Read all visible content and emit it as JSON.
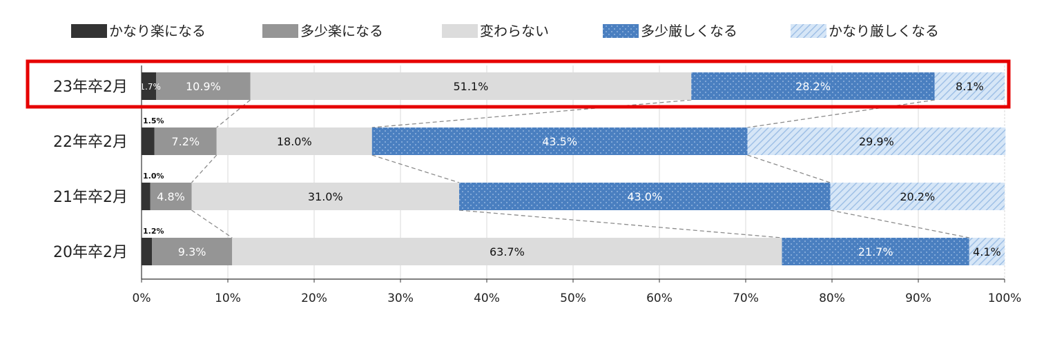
{
  "chart_data": {
    "type": "bar",
    "orientation": "horizontal",
    "stacked": true,
    "percent": true,
    "categories": [
      "23年卒2月",
      "22年卒2月",
      "21年卒2月",
      "20年卒2月"
    ],
    "series": [
      {
        "name": "かなり楽になる",
        "values": [
          1.7,
          1.5,
          1.0,
          1.2
        ],
        "labels": [
          "1.7%",
          "1.5%",
          "1.0%",
          "1.2%"
        ],
        "color": "#333333"
      },
      {
        "name": "多少楽になる",
        "values": [
          10.9,
          7.2,
          4.8,
          9.3
        ],
        "labels": [
          "10.9%",
          "7.2%",
          "4.8%",
          "9.3%"
        ],
        "color": "#959595"
      },
      {
        "name": "変わらない",
        "values": [
          51.1,
          18.0,
          31.0,
          63.7
        ],
        "labels": [
          "51.1%",
          "18.0%",
          "31.0%",
          "63.7%"
        ],
        "color": "#dcdcdc"
      },
      {
        "name": "多少厳しくなる",
        "values": [
          28.2,
          43.5,
          43.0,
          21.7
        ],
        "labels": [
          "28.2%",
          "43.5%",
          "43.0%",
          "21.7%"
        ],
        "color": "#4a7fc0"
      },
      {
        "name": "かなり厳しくなる",
        "values": [
          8.1,
          29.9,
          20.2,
          4.1
        ],
        "labels": [
          "8.1%",
          "29.9%",
          "20.2%",
          "4.1%"
        ],
        "color": "#c5dcf2"
      }
    ],
    "xlim": [
      0,
      100
    ],
    "xticks": [
      "0%",
      "10%",
      "20%",
      "30%",
      "40%",
      "50%",
      "60%",
      "70%",
      "80%",
      "90%",
      "100%"
    ],
    "grid": true,
    "legend_position": "top",
    "highlighted_category": "23年卒2月",
    "highlight_color": "#e60000"
  }
}
